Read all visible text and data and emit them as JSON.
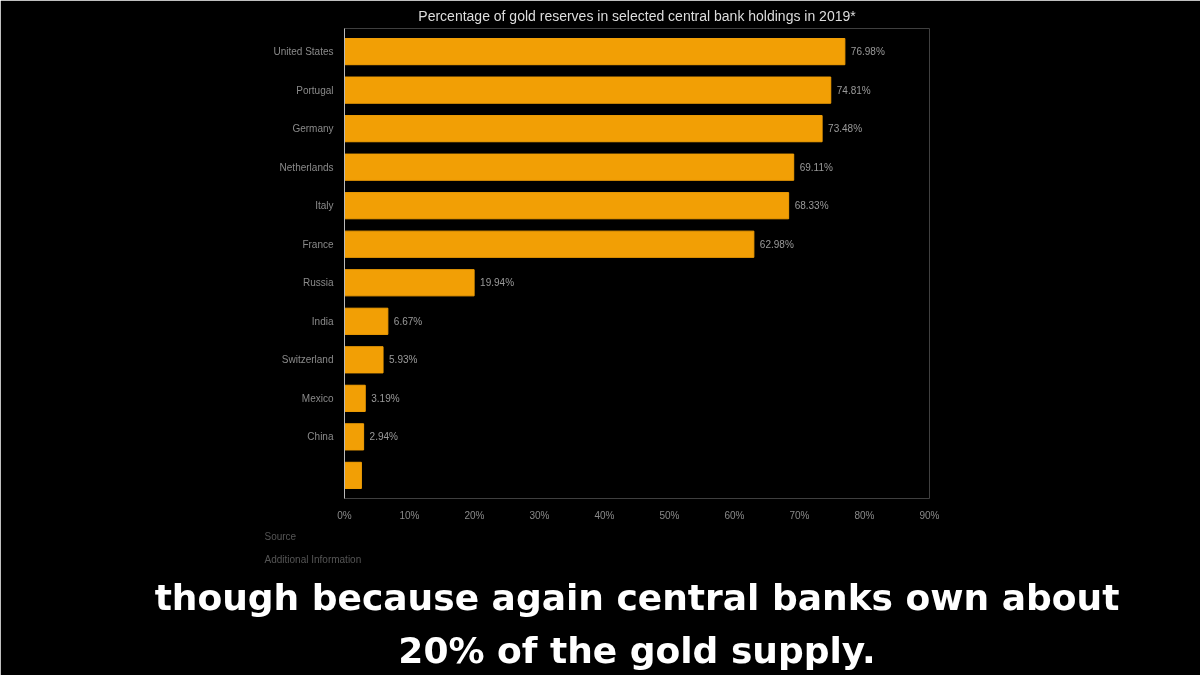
{
  "chart_data": {
    "type": "bar",
    "orientation": "horizontal",
    "title": "Percentage of gold reserves in selected central bank holdings in 2019*",
    "subtitle": "though because again central banks own about 20% of the gold supply.",
    "categories": [
      "United States",
      "Portugal",
      "Germany",
      "Netherlands",
      "Italy",
      "France",
      "Russia",
      "India",
      "Switzerland",
      "Mexico",
      "China",
      null
    ],
    "values": [
      76.98,
      74.81,
      73.48,
      69.11,
      68.33,
      62.98,
      19.94,
      6.67,
      5.93,
      3.19,
      2.94,
      2.6
    ],
    "value_labels": [
      "76.98%",
      "74.81%",
      "73.48%",
      "69.11%",
      "68.33%",
      "62.98%",
      "19.94%",
      "6.67%",
      "5.93%",
      "3.19%",
      "2.94%",
      null
    ],
    "color": "#f29f05",
    "xlim": [
      0,
      90
    ],
    "xticks": [
      {
        "value": 0,
        "label": "0%"
      },
      {
        "value": 10,
        "label": "10%"
      },
      {
        "value": 20,
        "label": "20%"
      },
      {
        "value": 30,
        "label": "30%"
      },
      {
        "value": 40,
        "label": "40%"
      },
      {
        "value": 50,
        "label": "50%"
      },
      {
        "value": 60,
        "label": "60%"
      },
      {
        "value": 70,
        "label": "70%"
      },
      {
        "value": 80,
        "label": "80%"
      },
      {
        "value": 90,
        "label": "90%"
      }
    ],
    "grid": false,
    "annotations": [
      "Source",
      "Additional Information"
    ]
  }
}
